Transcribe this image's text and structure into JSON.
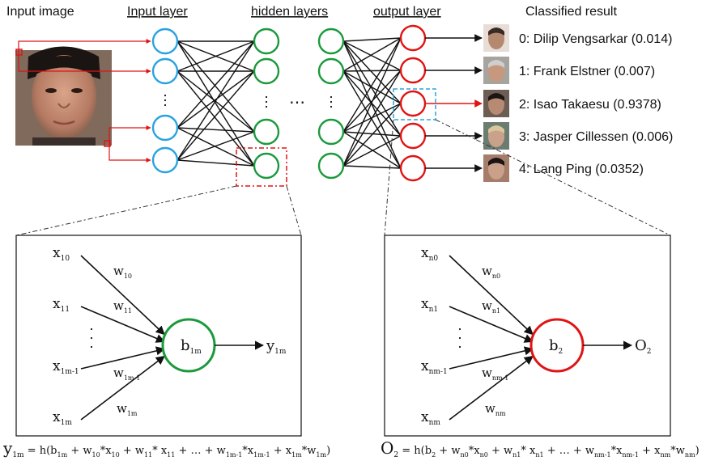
{
  "headers": {
    "input_image": "Input image",
    "input_layer": "Input layer",
    "hidden_layers": "hidden layers",
    "output_layer": "output layer",
    "classified_result": "Classified result"
  },
  "ellipsis": "…",
  "colors": {
    "input": "#29a3e0",
    "hidden": "#1b9a3c",
    "output": "#e01414",
    "highlight": "#e01414",
    "highlight_box": "#e01414",
    "output_highlight_box": "#29a3e0"
  },
  "results": [
    {
      "label": "0: Dilip Vengsarkar (0.014)",
      "highlight": false
    },
    {
      "label": "1: Frank Elstner (0.007)",
      "highlight": false
    },
    {
      "label": "2: Isao Takaesu (0.9378)",
      "highlight": true
    },
    {
      "label": "3: Jasper Cillessen (0.006)",
      "highlight": false
    },
    {
      "label": "4: Lang Ping (0.0352)",
      "highlight": false
    }
  ],
  "hidden_detail": {
    "inputs": [
      {
        "main": "x",
        "sub": "10"
      },
      {
        "main": "x",
        "sub": "11"
      },
      {
        "main": "x",
        "sub": "1m-1"
      },
      {
        "main": "x",
        "sub": "1m"
      }
    ],
    "weights": [
      {
        "main": "w",
        "sub": "10"
      },
      {
        "main": "w",
        "sub": "11"
      },
      {
        "main": "w",
        "sub": "1m-1"
      },
      {
        "main": "w",
        "sub": "1m"
      }
    ],
    "node": {
      "main": "b",
      "sub": "1m"
    },
    "output": {
      "main": "y",
      "sub": "1m"
    }
  },
  "output_detail": {
    "inputs": [
      {
        "main": "x",
        "sub": "n0"
      },
      {
        "main": "x",
        "sub": "n1"
      },
      {
        "main": "x",
        "sub": "nm-1"
      },
      {
        "main": "x",
        "sub": "nm"
      }
    ],
    "weights": [
      {
        "main": "w",
        "sub": "n0"
      },
      {
        "main": "w",
        "sub": "n1"
      },
      {
        "main": "w",
        "sub": "nm-1"
      },
      {
        "main": "w",
        "sub": "nm"
      }
    ],
    "node": {
      "main": "b",
      "sub": "2"
    },
    "output": {
      "main": "O",
      "sub": "2"
    }
  },
  "formula_hidden": {
    "lhs": {
      "main": "y",
      "sub": "1m"
    },
    "rhs": [
      {
        "t": " = h(b"
      },
      {
        "s": "1m"
      },
      {
        "t": " + w"
      },
      {
        "s": "10"
      },
      {
        "t": "*x"
      },
      {
        "s": "10"
      },
      {
        "t": " + w"
      },
      {
        "s": "11"
      },
      {
        "t": "* x"
      },
      {
        "s": "11"
      },
      {
        "t": " + … + w"
      },
      {
        "s": "1m-1"
      },
      {
        "t": "*x"
      },
      {
        "s": "1m-1"
      },
      {
        "t": " + x"
      },
      {
        "s": "1m"
      },
      {
        "t": "*w"
      },
      {
        "s": "1m"
      },
      {
        "t": ")"
      }
    ]
  },
  "formula_output": {
    "lhs": {
      "main": "O",
      "sub": "2"
    },
    "rhs": [
      {
        "t": " = h(b"
      },
      {
        "s": "2"
      },
      {
        "t": " + w"
      },
      {
        "s": "n0"
      },
      {
        "t": "*x"
      },
      {
        "s": "n0"
      },
      {
        "t": " + w"
      },
      {
        "s": "n1"
      },
      {
        "t": "* x"
      },
      {
        "s": "n1"
      },
      {
        "t": " + … + w"
      },
      {
        "s": "nm-1"
      },
      {
        "t": "*x"
      },
      {
        "s": "nm-1"
      },
      {
        "t": " + x"
      },
      {
        "s": "nm"
      },
      {
        "t": "*w"
      },
      {
        "s": "nm"
      },
      {
        "t": ")"
      }
    ]
  }
}
